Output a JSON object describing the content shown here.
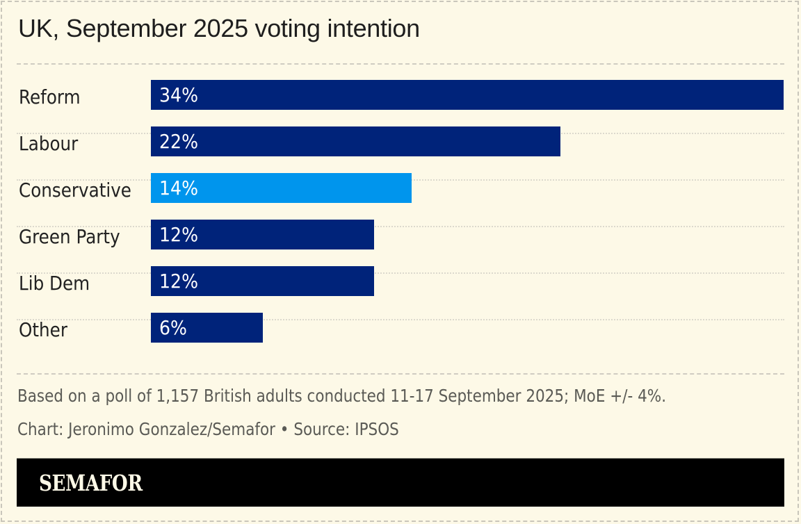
{
  "chart_data": {
    "type": "bar",
    "orientation": "horizontal",
    "title": "UK, September 2025 voting intention",
    "xlabel": "",
    "ylabel": "",
    "xlim": [
      0,
      34
    ],
    "grid": false,
    "legend": "none",
    "categories": [
      "Reform",
      "Labour",
      "Conservative",
      "Green Party",
      "Lib Dem",
      "Other"
    ],
    "values": [
      34,
      22,
      14,
      12,
      12,
      6
    ],
    "value_labels": [
      "34%",
      "22%",
      "14%",
      "12%",
      "12%",
      "6%"
    ],
    "colors": [
      "#00237a",
      "#00237a",
      "#0095ed",
      "#00237a",
      "#00237a",
      "#00237a"
    ],
    "note": "Based on a poll of 1,157 British adults conducted 11-17 September 2025; MoE +/- 4%.",
    "credit": "Chart: Jeronimo Gonzalez/Semafor • Source: IPSOS"
  },
  "brand": {
    "name": "SEMAFOR"
  }
}
